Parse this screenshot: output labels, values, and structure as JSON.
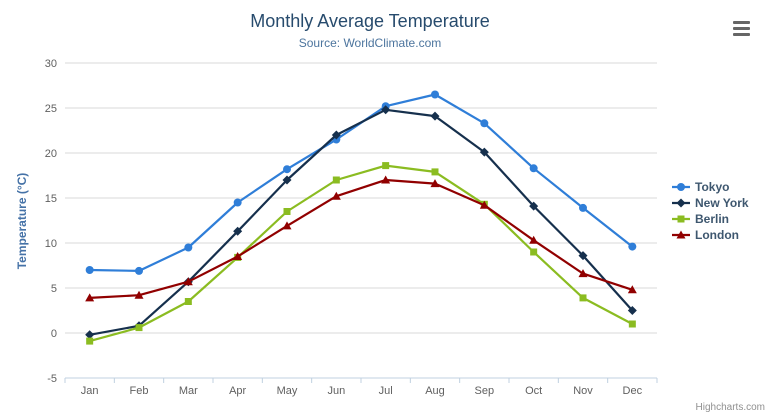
{
  "header": {
    "title": "Monthly Average Temperature",
    "subtitle": "Source: WorldClimate.com"
  },
  "y_axis": {
    "title": "Temperature (°C)"
  },
  "credit": "Highcharts.com",
  "menu": {
    "icon": "hamburger-menu"
  },
  "chart_data": {
    "type": "line",
    "title": "Monthly Average Temperature",
    "subtitle": "Source: WorldClimate.com",
    "categories": [
      "Jan",
      "Feb",
      "Mar",
      "Apr",
      "May",
      "Jun",
      "Jul",
      "Aug",
      "Sep",
      "Oct",
      "Nov",
      "Dec"
    ],
    "series": [
      {
        "name": "Tokyo",
        "color": "#2f7ed8",
        "marker": "circle",
        "values": [
          7.0,
          6.9,
          9.5,
          14.5,
          18.2,
          21.5,
          25.2,
          26.5,
          23.3,
          18.3,
          13.9,
          9.6
        ]
      },
      {
        "name": "New York",
        "color": "#16304d",
        "marker": "diamond",
        "values": [
          -0.2,
          0.8,
          5.7,
          11.3,
          17.0,
          22.0,
          24.8,
          24.1,
          20.1,
          14.1,
          8.6,
          2.5
        ]
      },
      {
        "name": "Berlin",
        "color": "#8bbc21",
        "marker": "square",
        "values": [
          -0.9,
          0.6,
          3.5,
          8.4,
          13.5,
          17.0,
          18.6,
          17.9,
          14.3,
          9.0,
          3.9,
          1.0
        ]
      },
      {
        "name": "London",
        "color": "#910000",
        "marker": "triangle",
        "values": [
          3.9,
          4.2,
          5.7,
          8.5,
          11.9,
          15.2,
          17.0,
          16.6,
          14.2,
          10.3,
          6.6,
          4.8
        ]
      }
    ],
    "xlabel": "",
    "ylabel": "Temperature (°C)",
    "ylim": [
      -5,
      30
    ],
    "yticks": [
      -5,
      0,
      5,
      10,
      15,
      20,
      25,
      30
    ],
    "grid": true,
    "legend_position": "right"
  },
  "colors": {
    "title": "#274b6d",
    "subtitle": "#4d759e",
    "axis_label": "#606060",
    "y_axis_title": "#4572a7",
    "legend_text": "#3e576f",
    "gridline": "#d8d8d8",
    "axis_line": "#c0d0e0",
    "credit": "#909090",
    "menu_icon": "#666666",
    "background": "#ffffff"
  }
}
